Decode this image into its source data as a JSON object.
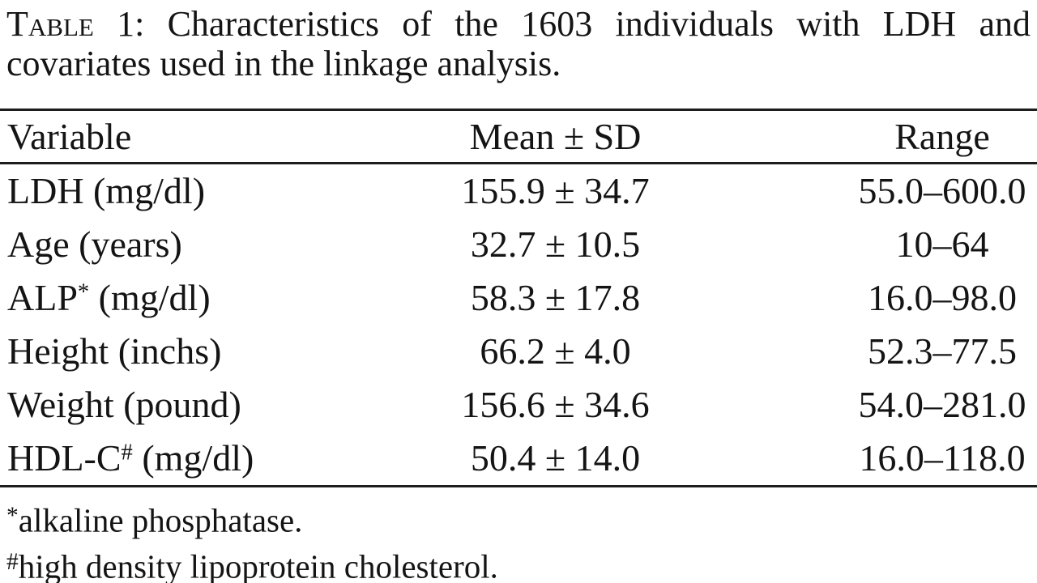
{
  "caption": {
    "label": "Table 1:",
    "line1": "Characteristics of the 1603 individuals with LDH and",
    "line2": "covariates used in the linkage analysis."
  },
  "table": {
    "columns": {
      "variable": "Variable",
      "mean_sd": "Mean ± SD",
      "range": "Range"
    },
    "rows": [
      {
        "name": "LDH",
        "marker": "",
        "unit": " (mg/dl)",
        "mean_sd": "155.9 ± 34.7",
        "range": "55.0–600.0"
      },
      {
        "name": "Age",
        "marker": "",
        "unit": " (years)",
        "mean_sd": "32.7 ± 10.5",
        "range": "10–64"
      },
      {
        "name": "ALP",
        "marker": "*",
        "unit": " (mg/dl)",
        "mean_sd": "58.3 ± 17.8",
        "range": "16.0–98.0"
      },
      {
        "name": "Height",
        "marker": "",
        "unit": " (inchs)",
        "mean_sd": "66.2 ± 4.0",
        "range": "52.3–77.5"
      },
      {
        "name": "Weight",
        "marker": "",
        "unit": " (pound)",
        "mean_sd": "156.6 ± 34.6",
        "range": "54.0–281.0"
      },
      {
        "name": "HDL-C",
        "marker": "#",
        "unit": " (mg/dl)",
        "mean_sd": "50.4 ± 14.0",
        "range": "16.0–118.0"
      }
    ]
  },
  "footnotes": [
    {
      "marker": "*",
      "text": "alkaline phosphatase."
    },
    {
      "marker": "#",
      "text": "high density lipoprotein cholesterol."
    }
  ],
  "colors": {
    "text": "#141414",
    "rule": "#1d1d1d",
    "background": "#ffffff"
  }
}
